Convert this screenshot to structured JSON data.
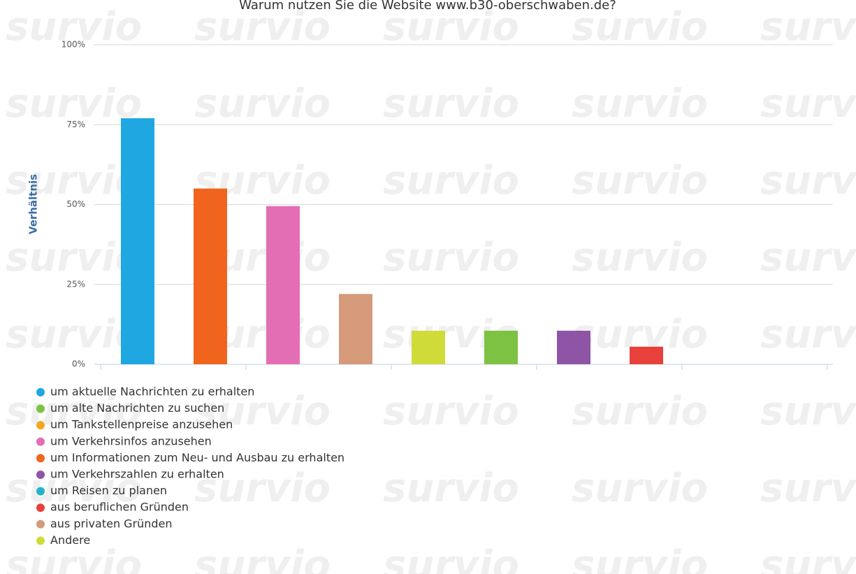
{
  "chart_data": {
    "type": "bar",
    "title": "Warum nutzen Sie die Website www.b30-oberschwaben.de?",
    "watermark": "survio",
    "y_axis_label": "Verhältnis",
    "categories": [
      null,
      null,
      null,
      null,
      null,
      null,
      null,
      null,
      null,
      null
    ],
    "ylim": [
      0,
      100
    ],
    "yticks": [
      {
        "value": 0,
        "label": "0%"
      },
      {
        "value": 25,
        "label": "25%"
      },
      {
        "value": 50,
        "label": "50%"
      },
      {
        "value": 75,
        "label": "75%"
      },
      {
        "value": 100,
        "label": "100%"
      }
    ],
    "grid": true,
    "legend": "bottom-left",
    "series": [
      {
        "name": "um aktuelle Nachrichten zu erhalten",
        "color": "#1ea7e1",
        "values": [
          77,
          null,
          null,
          null,
          null,
          null,
          null,
          null,
          null,
          null
        ]
      },
      {
        "name": "um alte Nachrichten zu suchen",
        "color": "#7dc242",
        "values": [
          null,
          null,
          null,
          null,
          null,
          10.5,
          null,
          null,
          null,
          null
        ]
      },
      {
        "name": "um Tankstellenpreise anzusehen",
        "color": "#f5a623",
        "values": [
          null,
          null,
          null,
          null,
          null,
          null,
          null,
          null,
          0,
          null
        ]
      },
      {
        "name": "um Verkehrsinfos anzusehen",
        "color": "#e46eb4",
        "values": [
          null,
          null,
          49.5,
          null,
          null,
          null,
          null,
          null,
          null,
          null
        ]
      },
      {
        "name": "um Informationen zum Neu- und Ausbau zu erhalten",
        "color": "#f0641e",
        "values": [
          null,
          55,
          null,
          null,
          null,
          null,
          null,
          null,
          null,
          null
        ]
      },
      {
        "name": "um Verkehrszahlen zu erhalten",
        "color": "#8e54a6",
        "values": [
          null,
          null,
          null,
          null,
          null,
          null,
          10.5,
          null,
          null,
          null
        ]
      },
      {
        "name": "um Reisen zu planen",
        "color": "#21b5c7",
        "values": [
          null,
          null,
          null,
          null,
          null,
          null,
          null,
          null,
          null,
          0
        ]
      },
      {
        "name": "aus beruflichen Gründen",
        "color": "#e8403a",
        "values": [
          null,
          null,
          null,
          null,
          null,
          null,
          null,
          5.5,
          null,
          null
        ]
      },
      {
        "name": "aus privaten Gründen",
        "color": "#d49a7a",
        "values": [
          null,
          null,
          null,
          22,
          null,
          null,
          null,
          null,
          null,
          null
        ]
      },
      {
        "name": "Andere",
        "color": "#cfdb38",
        "values": [
          null,
          null,
          null,
          null,
          10.5,
          null,
          null,
          null,
          null,
          null
        ]
      }
    ]
  }
}
